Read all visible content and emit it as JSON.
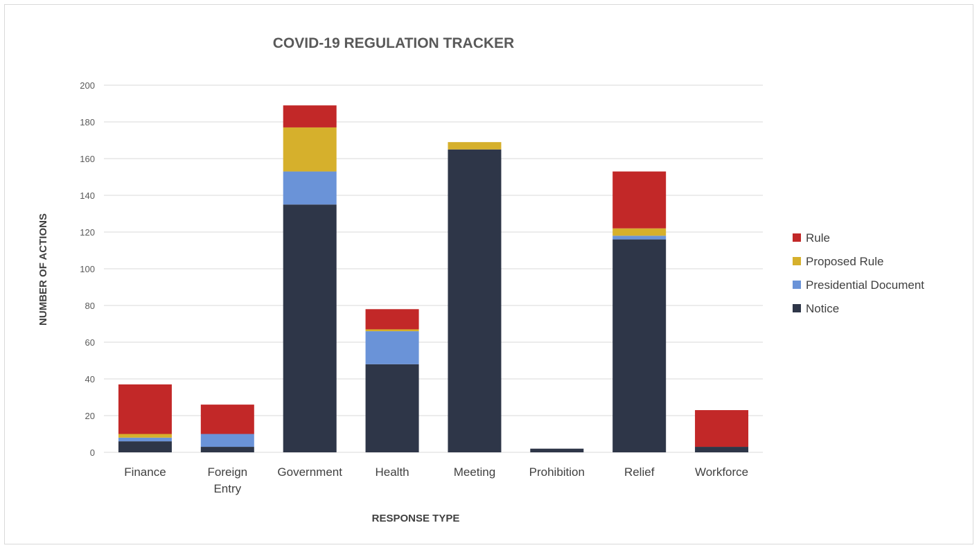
{
  "chart_data": {
    "type": "bar",
    "stacked": true,
    "title": "COVID-19 REGULATION TRACKER",
    "xlabel": "RESPONSE TYPE",
    "ylabel": "NUMBER OF ACTIONS",
    "ylim": [
      0,
      200
    ],
    "yticks": [
      0,
      20,
      40,
      60,
      80,
      100,
      120,
      140,
      160,
      180,
      200
    ],
    "grid": true,
    "legend_position": "right",
    "categories": [
      [
        "Finance"
      ],
      [
        "Foreign",
        "Entry"
      ],
      [
        "Government"
      ],
      [
        "Health"
      ],
      [
        "Meeting"
      ],
      [
        "Prohibition"
      ],
      [
        "Relief"
      ],
      [
        "Workforce"
      ]
    ],
    "series": [
      {
        "name": "Notice",
        "color": "#2e3648",
        "values": [
          6,
          3,
          135,
          48,
          165,
          2,
          116,
          3
        ]
      },
      {
        "name": "Presidential Document",
        "color": "#6a93d8",
        "values": [
          2,
          7,
          18,
          18,
          0,
          0,
          2,
          0
        ]
      },
      {
        "name": "Proposed Rule",
        "color": "#d6b02c",
        "values": [
          2,
          0,
          24,
          1,
          4,
          0,
          4,
          0
        ]
      },
      {
        "name": "Rule",
        "color": "#c22828",
        "values": [
          27,
          16,
          12,
          11,
          0,
          0,
          31,
          20
        ]
      }
    ],
    "legend_order": [
      "Rule",
      "Proposed Rule",
      "Presidential Document",
      "Notice"
    ]
  }
}
